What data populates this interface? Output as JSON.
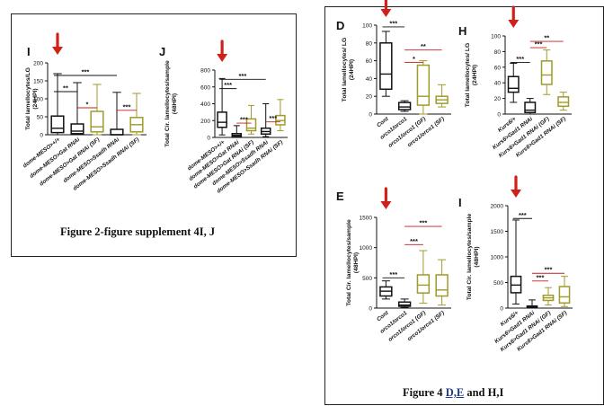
{
  "figures": [
    {
      "caption": "Figure 2-figure supplement 4I, J"
    },
    {
      "caption_prefix": "Figure 4 ",
      "caption_underlined": "D,E",
      "caption_suffix": " and H,I"
    }
  ],
  "colors": {
    "black": "#111111",
    "olive": "#a09a2a",
    "sig_black": "#111111",
    "sig_red": "#c41e1e",
    "arrow": "#d0201a"
  },
  "chart_data": [
    {
      "id": "I",
      "panel": "I",
      "type": "box",
      "ylabel": "Total lamellocytes/LG (24HPI)",
      "ylim": [
        0,
        200
      ],
      "yticks": [
        "0",
        "50",
        "100",
        "150",
        "200"
      ],
      "categories": [
        "dome-MESO>+/+",
        "dome-MESO>Gat RNAi",
        "dome-MESO>Gat RNAi (SF)",
        "dome-MESO>Ssadh RNAi",
        "dome-MESO>Ssadh RNAi (SF)"
      ],
      "boxes": [
        {
          "color": "black",
          "min": 0,
          "q1": 6,
          "median": 18,
          "q3": 52,
          "max": 170
        },
        {
          "color": "black",
          "min": 0,
          "q1": 3,
          "median": 10,
          "q3": 30,
          "max": 145
        },
        {
          "color": "olive",
          "min": 0,
          "q1": 8,
          "median": 22,
          "q3": 65,
          "max": 140
        },
        {
          "color": "black",
          "min": 0,
          "q1": 0,
          "median": 0,
          "q3": 15,
          "max": 118
        },
        {
          "color": "olive",
          "min": 0,
          "q1": 8,
          "median": 28,
          "q3": 48,
          "max": 115
        }
      ],
      "sig": [
        {
          "text": "***",
          "from": 0,
          "to": 3,
          "color": "black",
          "level": 165
        },
        {
          "text": "**",
          "from": 0,
          "to": 1,
          "color": "black",
          "level": 120
        },
        {
          "text": "*",
          "from": 1,
          "to": 2,
          "color": "red",
          "level": 75
        },
        {
          "text": "***",
          "from": 3,
          "to": 4,
          "color": "red",
          "level": 68
        }
      ],
      "arrow_at": 0
    },
    {
      "id": "J",
      "panel": "J",
      "type": "box",
      "ylabel": "Total Cir. lamellocytes/sample (48HPI)",
      "ylim": [
        0,
        800
      ],
      "yticks": [
        "0",
        "200",
        "400",
        "600",
        "800"
      ],
      "categories": [
        "dome-MESO>+/+",
        "dome-MESO>Gat RNAi",
        "dome-MESO>Gat RNAi (SF)",
        "dome-MESO>Ssadh RNAi",
        "dome-MESO>Ssadh RNAi (SF)"
      ],
      "boxes": [
        {
          "color": "black",
          "min": 30,
          "q1": 120,
          "median": 180,
          "q3": 300,
          "max": 700
        },
        {
          "color": "black",
          "min": 0,
          "q1": 10,
          "median": 25,
          "q3": 45,
          "max": 140
        },
        {
          "color": "olive",
          "min": 40,
          "q1": 80,
          "median": 110,
          "q3": 220,
          "max": 380
        },
        {
          "color": "black",
          "min": 10,
          "q1": 40,
          "median": 70,
          "q3": 110,
          "max": 400
        },
        {
          "color": "olive",
          "min": 80,
          "q1": 150,
          "median": 200,
          "q3": 260,
          "max": 450
        }
      ],
      "sig": [
        {
          "text": "***",
          "from": 0,
          "to": 3,
          "color": "black",
          "level": 690
        },
        {
          "text": "***",
          "from": 0,
          "to": 1,
          "color": "black",
          "level": 580
        },
        {
          "text": "***",
          "from": 1,
          "to": 2,
          "color": "red",
          "level": 170
        },
        {
          "text": "***",
          "from": 3,
          "to": 4,
          "color": "red",
          "level": 185
        }
      ],
      "arrow_at": 0
    },
    {
      "id": "D",
      "panel": "D",
      "type": "box",
      "ylabel": "Total lamellocytes/ LG (24HPI)",
      "ylim": [
        0,
        100
      ],
      "yticks": [
        "0",
        "20",
        "40",
        "60",
        "80",
        "100"
      ],
      "categories": [
        "Cont",
        "orco1/orco1",
        "orco1/orco1 (GF)",
        "orco1/orco1 (SF)"
      ],
      "boxes": [
        {
          "color": "black",
          "min": 20,
          "q1": 28,
          "median": 45,
          "q3": 80,
          "max": 93
        },
        {
          "color": "black",
          "min": 3,
          "q1": 5,
          "median": 8,
          "q3": 13,
          "max": 15
        },
        {
          "color": "olive",
          "min": 0,
          "q1": 10,
          "median": 20,
          "q3": 55,
          "max": 60
        },
        {
          "color": "olive",
          "min": 8,
          "q1": 12,
          "median": 16,
          "q3": 20,
          "max": 33
        }
      ],
      "sig": [
        {
          "text": "***",
          "from": 0,
          "to": 1,
          "color": "black",
          "level": 98
        },
        {
          "text": "**",
          "from": 1,
          "to": 3,
          "color": "red",
          "level": 72
        },
        {
          "text": "*",
          "from": 1,
          "to": 2,
          "color": "red",
          "level": 58
        }
      ],
      "arrow_at": 0
    },
    {
      "id": "H",
      "panel": "H",
      "type": "box",
      "ylabel": "Total lamellocytes/ LG (24HPI)",
      "ylim": [
        0,
        100
      ],
      "yticks": [
        "0",
        "20",
        "40",
        "60",
        "80",
        "100"
      ],
      "categories": [
        "Kurs6/+",
        "Kurs6>Gad1 RNAi",
        "Kurs6>Gad1 RNAi (GF)",
        "Kurs6>Gad1 RNAi (SF)"
      ],
      "boxes": [
        {
          "color": "black",
          "min": 15,
          "q1": 28,
          "median": 33,
          "q3": 48,
          "max": 65
        },
        {
          "color": "black",
          "min": 0,
          "q1": 2,
          "median": 5,
          "q3": 15,
          "max": 20
        },
        {
          "color": "olive",
          "min": 25,
          "q1": 38,
          "median": 50,
          "q3": 68,
          "max": 82
        },
        {
          "color": "olive",
          "min": 5,
          "q1": 10,
          "median": 15,
          "q3": 22,
          "max": 28
        }
      ],
      "sig": [
        {
          "text": "***",
          "from": 0,
          "to": 1,
          "color": "black",
          "level": 66
        },
        {
          "text": "***",
          "from": 1,
          "to": 2,
          "color": "red",
          "level": 85
        },
        {
          "text": "**",
          "from": 1,
          "to": 3,
          "color": "red",
          "level": 93
        }
      ],
      "arrow_at": 0
    },
    {
      "id": "E",
      "panel": "E",
      "type": "box",
      "ylabel": "Total Cir. lamellocytes/sample (48HPI)",
      "ylim": [
        0,
        1500
      ],
      "yticks": [
        "0",
        "500",
        "1000",
        "1500"
      ],
      "categories": [
        "Cont",
        "orco1/orco1",
        "orco1/orco1 (GF)",
        "orco1/orco1 (SF)"
      ],
      "boxes": [
        {
          "color": "black",
          "min": 150,
          "q1": 200,
          "median": 280,
          "q3": 350,
          "max": 450
        },
        {
          "color": "black",
          "min": 10,
          "q1": 30,
          "median": 50,
          "q3": 100,
          "max": 150
        },
        {
          "color": "olive",
          "min": 80,
          "q1": 250,
          "median": 380,
          "q3": 550,
          "max": 950
        },
        {
          "color": "olive",
          "min": 50,
          "q1": 200,
          "median": 300,
          "q3": 550,
          "max": 800
        }
      ],
      "sig": [
        {
          "text": "***",
          "from": 0,
          "to": 1,
          "color": "black",
          "level": 500
        },
        {
          "text": "***",
          "from": 1,
          "to": 2,
          "color": "red",
          "level": 1050
        },
        {
          "text": "***",
          "from": 1,
          "to": 3,
          "color": "red",
          "level": 1350
        }
      ],
      "arrow_at": 0
    },
    {
      "id": "I2",
      "panel": "I",
      "type": "box",
      "ylabel": "Total Cir. lamellocytes/sample (48HPI)",
      "ylim": [
        0,
        2000
      ],
      "yticks": [
        "0",
        "500",
        "1000",
        "1500",
        "2000"
      ],
      "categories": [
        "Kurs6/+",
        "Kurs6>Gad1 RNAi",
        "Kurs6>Gad1 RNAi (GF)",
        "Kurs6>Gad1 RNAi (SF)"
      ],
      "boxes": [
        {
          "color": "black",
          "min": 80,
          "q1": 300,
          "median": 450,
          "q3": 620,
          "max": 1720
        },
        {
          "color": "black",
          "min": 0,
          "q1": 5,
          "median": 15,
          "q3": 40,
          "max": 160
        },
        {
          "color": "olive",
          "min": 60,
          "q1": 150,
          "median": 200,
          "q3": 250,
          "max": 400
        },
        {
          "color": "olive",
          "min": 30,
          "q1": 100,
          "median": 220,
          "q3": 420,
          "max": 620
        }
      ],
      "sig": [
        {
          "text": "***",
          "from": 0,
          "to": 1,
          "color": "black",
          "level": 1750
        },
        {
          "text": "***",
          "from": 1,
          "to": 2,
          "color": "red",
          "level": 530
        },
        {
          "text": "***",
          "from": 1,
          "to": 3,
          "color": "red",
          "level": 680
        }
      ],
      "arrow_at": 0
    }
  ]
}
